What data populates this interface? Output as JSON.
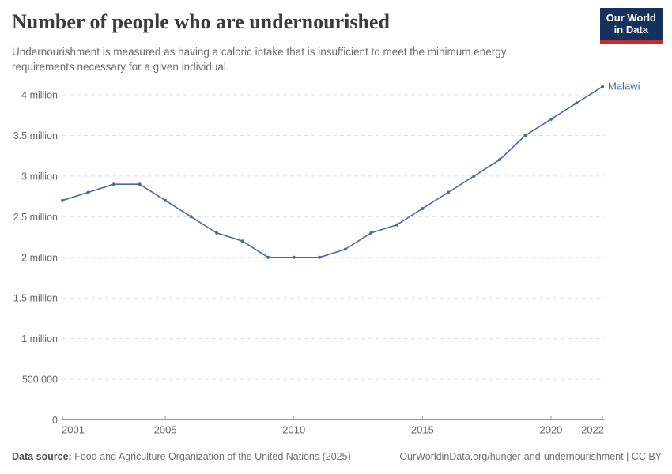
{
  "header": {
    "title": "Number of people who are undernourished",
    "subtitle": "Undernourishment is measured as having a caloric intake that is insufficient to meet the minimum energy requirements necessary for a given individual.",
    "logo": {
      "line1": "Our World",
      "line2": "in Data"
    }
  },
  "chart_data": {
    "type": "line",
    "title": "Number of people who are undernourished",
    "x": [
      2001,
      2002,
      2003,
      2004,
      2005,
      2006,
      2007,
      2008,
      2009,
      2010,
      2011,
      2012,
      2013,
      2014,
      2015,
      2016,
      2017,
      2018,
      2019,
      2020,
      2021,
      2022
    ],
    "series": [
      {
        "name": "Malawi",
        "color": "#4a67a0",
        "values": [
          2700000,
          2800000,
          2900000,
          2900000,
          2700000,
          2500000,
          2300000,
          2200000,
          2000000,
          2000000,
          2000000,
          2100000,
          2300000,
          2400000,
          2600000,
          2800000,
          3000000,
          3200000,
          3500000,
          3700000,
          3900000,
          4100000
        ]
      }
    ],
    "xlim": [
      2001,
      2022
    ],
    "ylim": [
      0,
      4000000
    ],
    "x_ticks": [
      2001,
      2005,
      2010,
      2015,
      2020,
      2022
    ],
    "y_ticks": [
      {
        "v": 0,
        "label": "0"
      },
      {
        "v": 500000,
        "label": "500,000"
      },
      {
        "v": 1000000,
        "label": "1 million"
      },
      {
        "v": 1500000,
        "label": "1.5 million"
      },
      {
        "v": 2000000,
        "label": "2 million"
      },
      {
        "v": 2500000,
        "label": "2.5 million"
      },
      {
        "v": 3000000,
        "label": "3 million"
      },
      {
        "v": 3500000,
        "label": "3.5 million"
      },
      {
        "v": 4000000,
        "label": "4 million"
      }
    ],
    "grid": true,
    "legend_position": "end-of-line",
    "colors": {
      "gridline": "#e0e0e0",
      "axis": "#999999",
      "tick_label": "#666666"
    }
  },
  "footer": {
    "source_label": "Data source:",
    "source_text": "Food and Agriculture Organization of the United Nations (2025)",
    "link_text": "OurWorldinData.org/hunger-and-undernourishment",
    "divider": " | ",
    "license_text": "CC BY"
  }
}
